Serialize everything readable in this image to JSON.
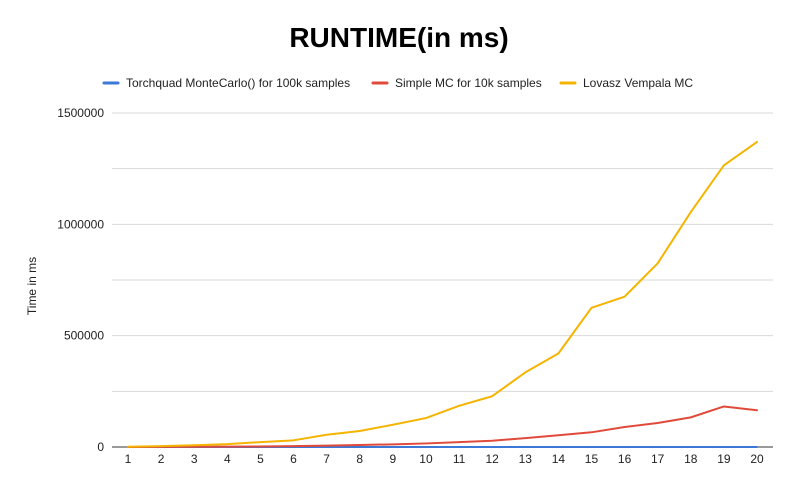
{
  "chart_data": {
    "type": "line",
    "title": "RUNTIME(in ms)",
    "xlabel": "",
    "ylabel": "Time in ms",
    "x": [
      1,
      2,
      3,
      4,
      5,
      6,
      7,
      8,
      9,
      10,
      11,
      12,
      13,
      14,
      15,
      16,
      17,
      18,
      19,
      20
    ],
    "y_ticks": [
      0,
      500000,
      1000000,
      1500000
    ],
    "ylim": [
      0,
      1500000
    ],
    "grid": true,
    "legend_position": "top",
    "series": [
      {
        "name": "Torchquad MonteCarlo() for 100k samples",
        "color": "#3b78d8",
        "values": [
          10,
          10,
          10,
          10,
          10,
          10,
          10,
          10,
          10,
          10,
          10,
          10,
          10,
          10,
          10,
          10,
          10,
          10,
          10,
          10
        ]
      },
      {
        "name": "Simple MC for 10k samples",
        "color": "#e04a3a",
        "values": [
          200,
          500,
          1000,
          1800,
          2500,
          4000,
          6000,
          9000,
          12000,
          16000,
          22000,
          28000,
          40000,
          53000,
          66000,
          90000,
          108000,
          133000,
          182000,
          165000
        ]
      },
      {
        "name": "Lovasz Vempala MC",
        "color": "#f4b400",
        "values": [
          1000,
          4000,
          8000,
          13000,
          22000,
          30000,
          55000,
          72000,
          100000,
          130000,
          185000,
          228000,
          335000,
          420000,
          625000,
          675000,
          825000,
          1055000,
          1265000,
          1370000
        ]
      }
    ]
  }
}
